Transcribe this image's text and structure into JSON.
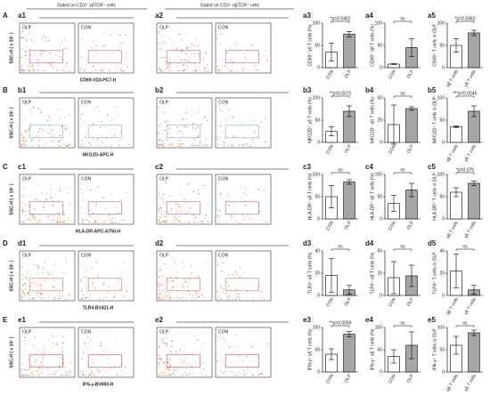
{
  "header": {
    "gate_left": "Gated on CD3⁺ γδTCR⁺ cells",
    "gate_right": "Gated on CD3⁺ αβTCR⁺ cells"
  },
  "rows": [
    {
      "letter": "A",
      "panels": [
        "a1",
        "a2"
      ],
      "ylabel": "SSC-H ( x 10⁵ )",
      "xlabel": "CD69-VD3-PC7-H",
      "plots": [
        "OLP",
        "CON",
        "OLP",
        "CON"
      ]
    },
    {
      "letter": "B",
      "panels": [
        "b1",
        "b2"
      ],
      "ylabel": "SSC-H ( x 10⁵ )",
      "xlabel": "NKG2D-APC-H",
      "plots": [
        "OLP",
        "CON",
        "OLP",
        "CON"
      ]
    },
    {
      "letter": "C",
      "panels": [
        "c1",
        "c2"
      ],
      "ylabel": "SSC-H ( x 10⁵ )",
      "xlabel": "HLA-DR-APC-A750-H",
      "plots": [
        "OLP",
        "CON",
        "OLP",
        "CON"
      ]
    },
    {
      "letter": "D",
      "panels": [
        "d1",
        "d2"
      ],
      "ylabel": "SSC-H ( x 10⁵ )",
      "xlabel": "TLR4-BV421-H",
      "plots": [
        "OLP",
        "CON",
        "OLP",
        "CON"
      ]
    },
    {
      "letter": "E",
      "panels": [
        "e1",
        "e2"
      ],
      "ylabel": "SSC-H ( x 10⁵ )",
      "xlabel": "IFN-γ-BV650-H",
      "plots": [
        "OLP",
        "CON",
        "OLP",
        "CON"
      ]
    }
  ],
  "chart_data": [
    {
      "type": "bar",
      "label": "a3",
      "ylabel": "CD69⁺ γδ T cells (%)",
      "categories": [
        "CON",
        "OLP"
      ],
      "values": [
        35,
        75
      ],
      "errors": [
        20,
        6
      ],
      "colors": [
        "#ffffff",
        "#a6a6a6"
      ],
      "annotation": "*p=0.0462",
      "ylim": [
        0,
        100
      ],
      "yticks": [
        0,
        50,
        100
      ]
    },
    {
      "type": "bar",
      "label": "a4",
      "ylabel": "CD69⁺ αβ T cells (%)",
      "categories": [
        "CON",
        "OLP"
      ],
      "values": [
        8,
        45
      ],
      "errors": [
        1,
        20
      ],
      "colors": [
        "#ffffff",
        "#a6a6a6"
      ],
      "annotation": "ns",
      "ylim": [
        0,
        100
      ],
      "yticks": [
        0,
        50,
        100
      ]
    },
    {
      "type": "bar",
      "label": "a5",
      "ylabel": "CD69⁺ T cells in OLP",
      "categories": [
        "αβ T cells",
        "γδ T cells"
      ],
      "values": [
        50,
        78
      ],
      "errors": [
        15,
        6
      ],
      "colors": [
        "#ffffff",
        "#a6a6a6"
      ],
      "annotation": "*p=0.0362",
      "ylim": [
        0,
        100
      ],
      "yticks": [
        0,
        50,
        100
      ]
    },
    {
      "type": "bar",
      "label": "b3",
      "ylabel": "NKG2D⁺ γδ T cells (%)",
      "categories": [
        "CON",
        "OLP"
      ],
      "values": [
        25,
        70
      ],
      "errors": [
        10,
        12
      ],
      "colors": [
        "#ffffff",
        "#a6a6a6"
      ],
      "annotation": "**p=0.0072",
      "ylim": [
        0,
        100
      ],
      "yticks": [
        0,
        50,
        100
      ]
    },
    {
      "type": "bar",
      "label": "b4",
      "ylabel": "NKG2D⁺ αβ T cells (%)",
      "categories": [
        "CON",
        "OLP"
      ],
      "values": [
        20,
        38
      ],
      "errors": [
        22,
        2
      ],
      "colors": [
        "#ffffff",
        "#a6a6a6"
      ],
      "annotation": "ns",
      "ylim": [
        0,
        50
      ],
      "yticks": [
        0,
        25,
        50
      ]
    },
    {
      "type": "bar",
      "label": "b5",
      "ylabel": "NKG2D⁺ T cells in OLP",
      "categories": [
        "αβ T cells",
        "γδ T cells"
      ],
      "values": [
        35,
        70
      ],
      "errors": [
        2,
        12
      ],
      "colors": [
        "#ffffff",
        "#a6a6a6"
      ],
      "annotation": "***p=0.0045",
      "ylim": [
        0,
        100
      ],
      "yticks": [
        0,
        50,
        100
      ]
    },
    {
      "type": "bar",
      "label": "c3",
      "ylabel": "HLA-DR⁺ γδ T cells (%)",
      "categories": [
        "CON",
        "OLP"
      ],
      "values": [
        50,
        83
      ],
      "errors": [
        25,
        5
      ],
      "colors": [
        "#ffffff",
        "#a6a6a6"
      ],
      "annotation": "ns",
      "ylim": [
        0,
        100
      ],
      "yticks": [
        0,
        50,
        100
      ]
    },
    {
      "type": "bar",
      "label": "c4",
      "ylabel": "HLA-DR⁺ αβ T cells (%)",
      "categories": [
        "CON",
        "OLP"
      ],
      "values": [
        35,
        65
      ],
      "errors": [
        18,
        15
      ],
      "colors": [
        "#ffffff",
        "#a6a6a6"
      ],
      "annotation": "ns",
      "ylim": [
        0,
        100
      ],
      "yticks": [
        0,
        50,
        100
      ]
    },
    {
      "type": "bar",
      "label": "c5",
      "ylabel": "HLA-DR⁺ T cells in OLP",
      "categories": [
        "αβ T cells",
        "γδ T cells"
      ],
      "values": [
        60,
        80
      ],
      "errors": [
        10,
        5
      ],
      "colors": [
        "#ffffff",
        "#a6a6a6"
      ],
      "annotation": "*p=0.075",
      "ylim": [
        0,
        100
      ],
      "yticks": [
        0,
        50,
        100
      ]
    },
    {
      "type": "bar",
      "label": "d3",
      "ylabel": "TLR4⁺ γδ T cells (%)",
      "categories": [
        "CON",
        "OLP"
      ],
      "values": [
        18,
        5
      ],
      "errors": [
        15,
        4
      ],
      "colors": [
        "#ffffff",
        "#a6a6a6"
      ],
      "annotation": "ns",
      "ylim": [
        0,
        40
      ],
      "yticks": [
        0,
        20,
        40
      ]
    },
    {
      "type": "bar",
      "label": "d4",
      "ylabel": "TLR4⁺ αβ T cells (%)",
      "categories": [
        "CON",
        "OLP"
      ],
      "values": [
        20,
        22
      ],
      "errors": [
        18,
        12
      ],
      "colors": [
        "#ffffff",
        "#a6a6a6"
      ],
      "annotation": "ns",
      "ylim": [
        0,
        50
      ],
      "yticks": [
        0,
        25,
        50
      ]
    },
    {
      "type": "bar",
      "label": "d5",
      "ylabel": "TLR4⁺ T cells in OLP",
      "categories": [
        "αβ T cells",
        "γδ T cells"
      ],
      "values": [
        22,
        5
      ],
      "errors": [
        15,
        4
      ],
      "colors": [
        "#ffffff",
        "#a6a6a6"
      ],
      "annotation": "ns",
      "ylim": [
        0,
        40
      ],
      "yticks": [
        0,
        20,
        40
      ]
    },
    {
      "type": "bar",
      "label": "e3",
      "ylabel": "IFN-γ⁺ γδ T cells (%)",
      "categories": [
        "CON",
        "OLP"
      ],
      "values": [
        40,
        85
      ],
      "errors": [
        12,
        6
      ],
      "colors": [
        "#ffffff",
        "#a6a6a6"
      ],
      "annotation": "**p=0.0059",
      "ylim": [
        0,
        100
      ],
      "yticks": [
        0,
        50,
        100
      ]
    },
    {
      "type": "bar",
      "label": "e4",
      "ylabel": "IFN-γ⁺ αβ T cells (%)",
      "categories": [
        "CON",
        "OLP"
      ],
      "values": [
        35,
        60
      ],
      "errors": [
        15,
        30
      ],
      "colors": [
        "#ffffff",
        "#a6a6a6"
      ],
      "annotation": "ns",
      "ylim": [
        0,
        100
      ],
      "yticks": [
        0,
        50,
        100
      ]
    },
    {
      "type": "bar",
      "label": "e5",
      "ylabel": "IFN-γ⁺ T cells in OLP",
      "categories": [
        "αβ T cells",
        "γδ T cells"
      ],
      "values": [
        60,
        88
      ],
      "errors": [
        20,
        6
      ],
      "colors": [
        "#ffffff",
        "#a6a6a6"
      ],
      "annotation": "ns",
      "ylim": [
        0,
        100
      ],
      "yticks": [
        0,
        50,
        100
      ]
    }
  ]
}
